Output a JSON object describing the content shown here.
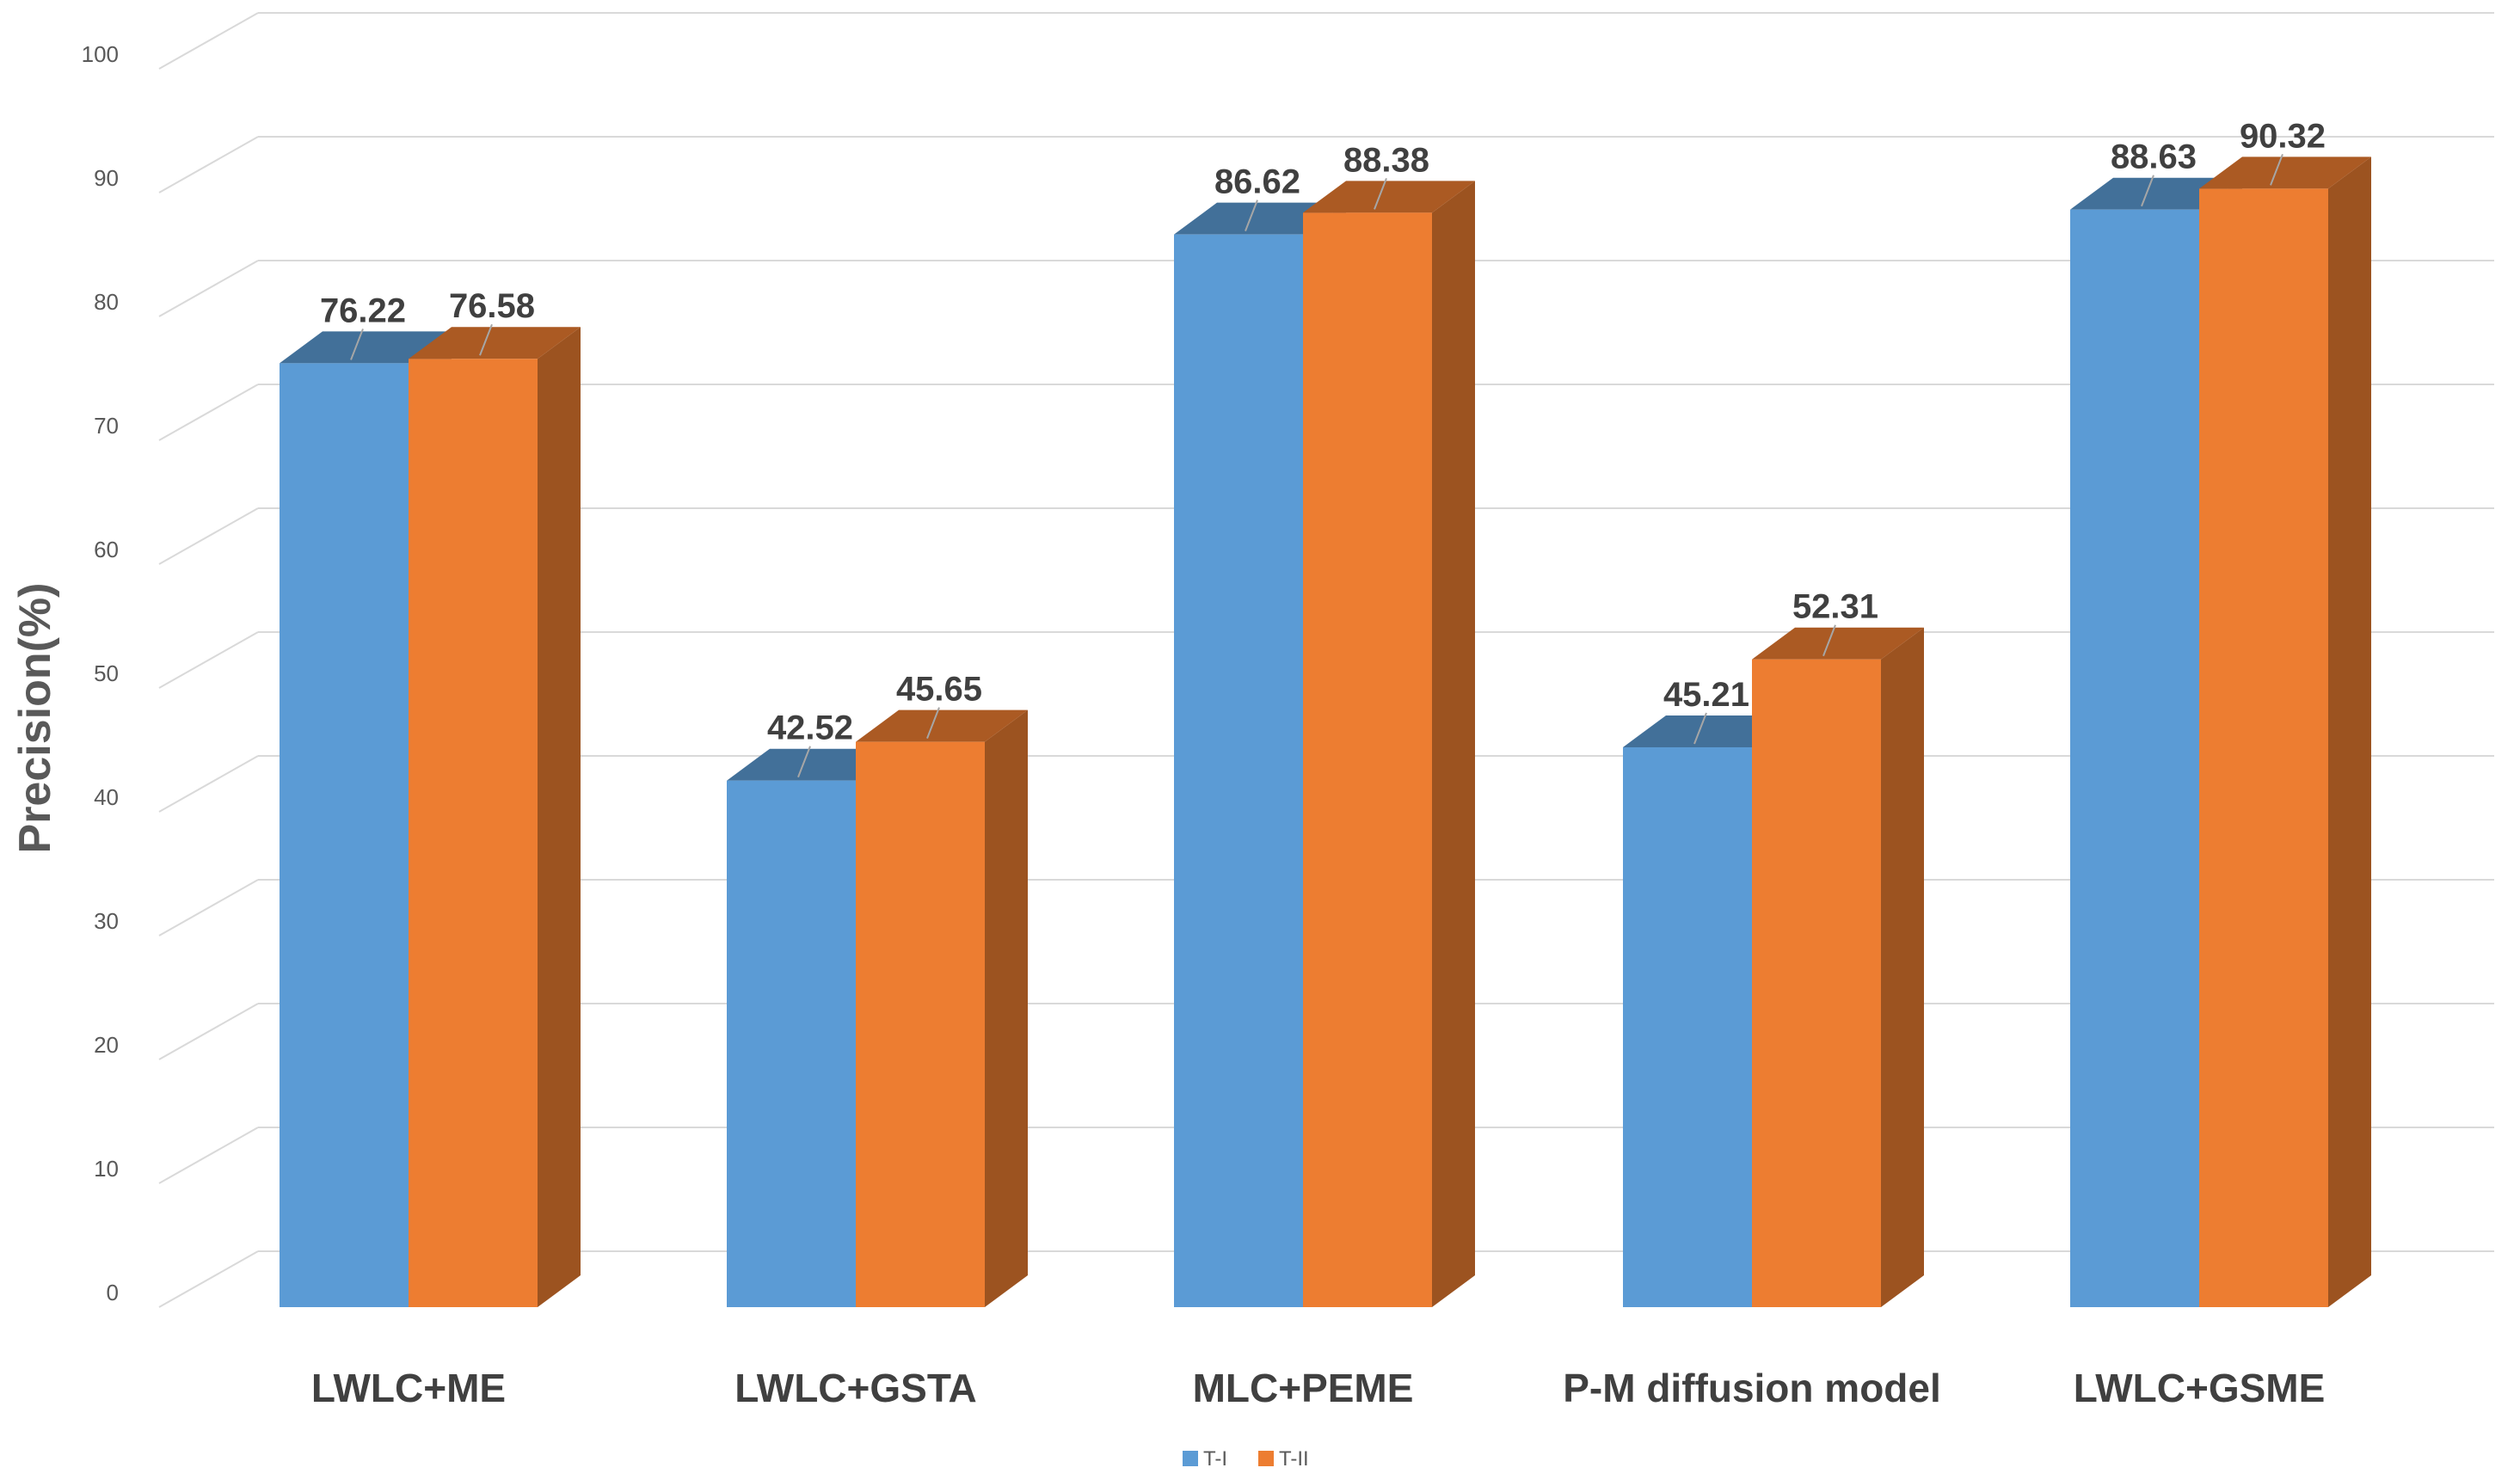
{
  "chart_data": {
    "type": "bar",
    "title": "",
    "xlabel": "",
    "ylabel": "Precision(%)",
    "ylim": [
      0,
      100
    ],
    "yticks": [
      "0",
      "10",
      "20",
      "30",
      "40",
      "50",
      "60",
      "70",
      "80",
      "90",
      "100"
    ],
    "grid": true,
    "legend_position": "bottom-center",
    "categories": [
      "LWLC+ME",
      "LWLC+GSTA",
      "MLC+PEME",
      "P-M diffusion model",
      "LWLC+GSME"
    ],
    "series": [
      {
        "name": "T-I",
        "color": "#5B9BD5",
        "values": [
          76.22,
          42.52,
          86.62,
          45.21,
          88.63
        ],
        "labels": [
          "76.22",
          "42.52",
          "86.62",
          "45.21",
          "88.63"
        ]
      },
      {
        "name": "T-II",
        "color": "#ED7D31",
        "values": [
          76.58,
          45.65,
          88.38,
          52.31,
          90.32
        ],
        "labels": [
          "76.58",
          "45.65",
          "88.38",
          "52.31",
          "90.32"
        ]
      }
    ]
  }
}
